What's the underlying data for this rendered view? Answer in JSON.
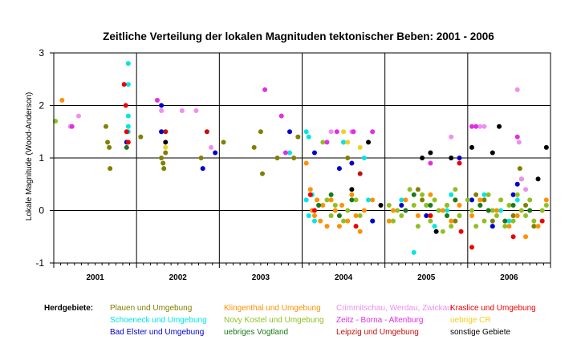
{
  "chart_data": {
    "type": "scatter",
    "title": "Zeitliche Verteilung der lokalen Magnituden tektonischer Beben: 2001 - 2006",
    "ylabel": "Lokale Magnitude (Wood-Anderson)",
    "xlabel": "",
    "ylim": [
      -1,
      3
    ],
    "yticks": [
      "-1",
      "0",
      "1",
      "2",
      "3"
    ],
    "xlim": [
      2001.0,
      2007.0
    ],
    "years": [
      "2001",
      "2002",
      "2003",
      "2004",
      "2005",
      "2006"
    ],
    "grid": true,
    "legend_title": "Herdgebiete:",
    "legend_position": "bottom",
    "series": [
      {
        "name": "Plauen und Umgebung",
        "color": "#808000",
        "points": [
          [
            2001.63,
            1.6
          ],
          [
            2001.65,
            1.3
          ],
          [
            2001.67,
            1.2
          ],
          [
            2001.68,
            0.8
          ],
          [
            2002.05,
            1.4
          ],
          [
            2002.3,
            1.0
          ],
          [
            2002.32,
            0.9
          ],
          [
            2002.33,
            0.8
          ],
          [
            2002.35,
            1.1
          ],
          [
            2002.78,
            1.0
          ],
          [
            2003.05,
            1.3
          ],
          [
            2003.42,
            1.2
          ],
          [
            2003.5,
            1.5
          ],
          [
            2003.52,
            0.7
          ],
          [
            2003.7,
            1.0
          ],
          [
            2003.9,
            1.0
          ],
          [
            2003.95,
            1.4
          ],
          [
            2004.5,
            1.3
          ],
          [
            2004.55,
            1.0
          ],
          [
            2005.4,
            0.4
          ],
          [
            2005.45,
            0.2
          ],
          [
            2005.55,
            -0.1
          ],
          [
            2005.75,
            0.1
          ],
          [
            2005.85,
            -0.2
          ],
          [
            2006.1,
            0.3
          ],
          [
            2006.2,
            0.2
          ],
          [
            2006.3,
            -0.2
          ],
          [
            2006.55,
            -0.1
          ],
          [
            2006.63,
            0.8
          ],
          [
            2006.65,
            0.6
          ],
          [
            2006.7,
            0.1
          ],
          [
            2006.8,
            -0.3
          ]
        ]
      },
      {
        "name": "Schoeneck und Umgebung",
        "color": "#00e5e5",
        "points": [
          [
            2001.9,
            2.8
          ],
          [
            2001.9,
            2.4
          ],
          [
            2001.9,
            1.8
          ],
          [
            2001.9,
            1.6
          ],
          [
            2001.9,
            1.5
          ],
          [
            2002.3,
            1.5
          ],
          [
            2003.85,
            1.1
          ],
          [
            2004.05,
            1.5
          ],
          [
            2004.08,
            1.4
          ],
          [
            2004.05,
            0.2
          ],
          [
            2004.08,
            -0.1
          ],
          [
            2004.12,
            0.3
          ],
          [
            2004.15,
            -0.2
          ],
          [
            2004.2,
            0.1
          ],
          [
            2004.5,
            1.3
          ],
          [
            2004.75,
            1.0
          ],
          [
            2004.8,
            0.2
          ],
          [
            2004.85,
            -0.2
          ],
          [
            2005.2,
            0.2
          ],
          [
            2005.35,
            -0.8
          ],
          [
            2005.5,
            0.1
          ],
          [
            2005.6,
            -0.3
          ],
          [
            2005.75,
            0.0
          ],
          [
            2005.8,
            0.3
          ],
          [
            2005.9,
            -0.1
          ],
          [
            2006.05,
            0.2
          ],
          [
            2006.2,
            0.3
          ],
          [
            2006.3,
            -0.3
          ],
          [
            2006.4,
            0.0
          ],
          [
            2006.5,
            -0.2
          ],
          [
            2006.6,
            0.2
          ]
        ]
      },
      {
        "name": "Bad Elster und Umgebung",
        "color": "#0000d0",
        "points": [
          [
            2001.88,
            1.3
          ],
          [
            2002.3,
            2.0
          ],
          [
            2002.3,
            1.5
          ],
          [
            2002.8,
            0.8
          ],
          [
            2002.95,
            1.1
          ],
          [
            2003.85,
            1.5
          ],
          [
            2004.15,
            1.1
          ],
          [
            2004.45,
            0.8
          ],
          [
            2004.6,
            0.9
          ],
          [
            2004.85,
            -0.2
          ],
          [
            2005.2,
            0.1
          ],
          [
            2005.5,
            -0.1
          ],
          [
            2005.9,
            1.0
          ],
          [
            2006.05,
            0.2
          ],
          [
            2006.3,
            -0.3
          ],
          [
            2006.55,
            0.3
          ],
          [
            2006.6,
            0.5
          ]
        ]
      },
      {
        "name": "Klingenthal und Umgebung",
        "color": "#ff9000",
        "points": [
          [
            2001.1,
            2.1
          ],
          [
            2004.05,
            0.9
          ],
          [
            2004.1,
            0.4
          ],
          [
            2004.12,
            0.0
          ],
          [
            2004.15,
            -0.1
          ],
          [
            2004.18,
            0.2
          ],
          [
            2004.22,
            -0.2
          ],
          [
            2004.25,
            0.1
          ],
          [
            2004.3,
            -0.3
          ],
          [
            2004.35,
            0.2
          ],
          [
            2004.4,
            0.0
          ],
          [
            2004.45,
            -0.3
          ],
          [
            2004.48,
            0.1
          ],
          [
            2004.55,
            -0.2
          ],
          [
            2004.6,
            0.3
          ],
          [
            2004.65,
            -0.1
          ],
          [
            2004.7,
            -0.4
          ],
          [
            2004.75,
            0.0
          ],
          [
            2004.85,
            0.2
          ],
          [
            2005.05,
            -0.2
          ],
          [
            2005.1,
            0.0
          ],
          [
            2005.25,
            0.2
          ],
          [
            2005.4,
            -0.1
          ],
          [
            2005.55,
            0.3
          ],
          [
            2005.7,
            0.0
          ],
          [
            2005.8,
            -0.2
          ],
          [
            2005.85,
            0.2
          ],
          [
            2005.9,
            0.1
          ],
          [
            2006.05,
            -0.1
          ],
          [
            2006.15,
            0.2
          ],
          [
            2006.35,
            0.0
          ],
          [
            2006.5,
            -0.3
          ],
          [
            2006.6,
            -0.1
          ],
          [
            2006.7,
            -0.5
          ],
          [
            2006.85,
            -0.3
          ],
          [
            2006.95,
            0.2
          ]
        ]
      },
      {
        "name": "Novy Kostel und Umgebung",
        "color": "#90c020",
        "points": [
          [
            2001.02,
            1.7
          ],
          [
            2004.25,
            1.3
          ],
          [
            2004.3,
            0.2
          ],
          [
            2004.35,
            -0.1
          ],
          [
            2004.4,
            0.1
          ],
          [
            2004.5,
            -0.2
          ],
          [
            2004.55,
            0.0
          ],
          [
            2004.65,
            0.2
          ],
          [
            2004.7,
            -0.1
          ],
          [
            2005.05,
            0.1
          ],
          [
            2005.1,
            -0.2
          ],
          [
            2005.15,
            0.0
          ],
          [
            2005.2,
            -0.1
          ],
          [
            2005.3,
            0.4
          ],
          [
            2005.35,
            0.1
          ],
          [
            2005.4,
            -0.3
          ],
          [
            2005.45,
            0.3
          ],
          [
            2005.5,
            0.1
          ],
          [
            2005.55,
            -0.2
          ],
          [
            2005.6,
            0.2
          ],
          [
            2005.65,
            0.0
          ],
          [
            2005.7,
            -0.4
          ],
          [
            2005.75,
            0.1
          ],
          [
            2005.8,
            -0.3
          ],
          [
            2005.85,
            0.4
          ],
          [
            2005.9,
            -0.1
          ],
          [
            2006.0,
            0.2
          ],
          [
            2006.05,
            0.0
          ],
          [
            2006.1,
            -0.3
          ],
          [
            2006.15,
            0.1
          ],
          [
            2006.2,
            -0.2
          ],
          [
            2006.25,
            0.3
          ],
          [
            2006.3,
            0.0
          ],
          [
            2006.35,
            -0.1
          ],
          [
            2006.4,
            0.2
          ],
          [
            2006.45,
            -0.3
          ],
          [
            2006.5,
            0.1
          ],
          [
            2006.55,
            -0.2
          ],
          [
            2006.6,
            0.3
          ],
          [
            2006.65,
            0.0
          ],
          [
            2006.7,
            -0.1
          ],
          [
            2006.75,
            0.2
          ],
          [
            2006.8,
            -0.2
          ],
          [
            2006.9,
            0.0
          ],
          [
            2006.95,
            0.1
          ]
        ]
      },
      {
        "name": "uebriges Vogtland",
        "color": "#1a7a1a",
        "points": [
          [
            2001.88,
            1.2
          ],
          [
            2004.2,
            0.1
          ],
          [
            2004.35,
            0.3
          ],
          [
            2004.45,
            -0.1
          ],
          [
            2004.6,
            0.2
          ],
          [
            2005.25,
            0.0
          ],
          [
            2005.35,
            0.3
          ],
          [
            2005.55,
            0.1
          ],
          [
            2005.75,
            -0.1
          ],
          [
            2005.85,
            0.2
          ],
          [
            2006.15,
            0.1
          ],
          [
            2006.25,
            0.0
          ],
          [
            2006.45,
            -0.2
          ],
          [
            2006.55,
            0.1
          ],
          [
            2006.75,
            0.0
          ]
        ]
      },
      {
        "name": "Crimmitschau, Werdau, Zwickau",
        "color": "#ef8fef",
        "points": [
          [
            2001.2,
            1.6
          ],
          [
            2001.3,
            1.8
          ],
          [
            2002.3,
            1.9
          ],
          [
            2002.55,
            1.9
          ],
          [
            2002.72,
            1.9
          ],
          [
            2002.9,
            1.2
          ],
          [
            2004.35,
            1.5
          ],
          [
            2004.6,
            1.5
          ],
          [
            2005.8,
            1.4
          ],
          [
            2006.15,
            1.6
          ],
          [
            2006.2,
            1.6
          ],
          [
            2006.6,
            2.3
          ],
          [
            2006.62,
            1.3
          ],
          [
            2006.65,
            0.6
          ],
          [
            2006.7,
            0.4
          ]
        ]
      },
      {
        "name": "Zeitz - Borna -  Altenburg",
        "color": "#e030e0",
        "points": [
          [
            2001.22,
            1.6
          ],
          [
            2002.25,
            2.1
          ],
          [
            2003.55,
            2.3
          ],
          [
            2003.75,
            1.8
          ],
          [
            2003.8,
            1.1
          ],
          [
            2004.3,
            1.3
          ],
          [
            2004.42,
            1.5
          ],
          [
            2004.62,
            1.5
          ],
          [
            2004.85,
            1.5
          ],
          [
            2005.55,
            0.9
          ],
          [
            2006.05,
            1.6
          ],
          [
            2006.1,
            1.6
          ],
          [
            2006.6,
            1.4
          ]
        ]
      },
      {
        "name": "Leipzig und Umgebung",
        "color": "#c01010",
        "points": [
          [
            2002.35,
            1.5
          ],
          [
            2002.85,
            1.5
          ],
          [
            2004.7,
            0.7
          ]
        ]
      },
      {
        "name": "Kraslice und Umgebung",
        "color": "#ee0000",
        "points": [
          [
            2001.85,
            2.4
          ],
          [
            2001.87,
            2.0
          ],
          [
            2001.88,
            1.5
          ],
          [
            2001.9,
            1.3
          ],
          [
            2004.1,
            0.3
          ],
          [
            2004.15,
            0.0
          ],
          [
            2004.65,
            -0.3
          ],
          [
            2005.55,
            -0.1
          ],
          [
            2005.9,
            0.9
          ],
          [
            2005.92,
            -0.4
          ],
          [
            2006.05,
            -0.7
          ],
          [
            2006.55,
            -0.5
          ],
          [
            2006.9,
            -0.2
          ]
        ]
      },
      {
        "name": "uebrige CR",
        "color": "#f0d020",
        "points": [
          [
            2002.35,
            1.2
          ],
          [
            2004.5,
            1.5
          ],
          [
            2004.55,
            1.3
          ],
          [
            2004.7,
            1.2
          ]
        ]
      },
      {
        "name": "sonstige Gebiete",
        "color": "#000000",
        "points": [
          [
            2002.35,
            1.3
          ],
          [
            2004.6,
            0.4
          ],
          [
            2004.8,
            1.3
          ],
          [
            2004.95,
            0.1
          ],
          [
            2005.45,
            1.0
          ],
          [
            2005.55,
            1.1
          ],
          [
            2005.62,
            -0.4
          ],
          [
            2005.8,
            1.0
          ],
          [
            2006.05,
            1.2
          ],
          [
            2006.3,
            1.1
          ],
          [
            2006.38,
            1.6
          ],
          [
            2006.85,
            0.6
          ],
          [
            2006.95,
            1.2
          ]
        ]
      }
    ]
  }
}
